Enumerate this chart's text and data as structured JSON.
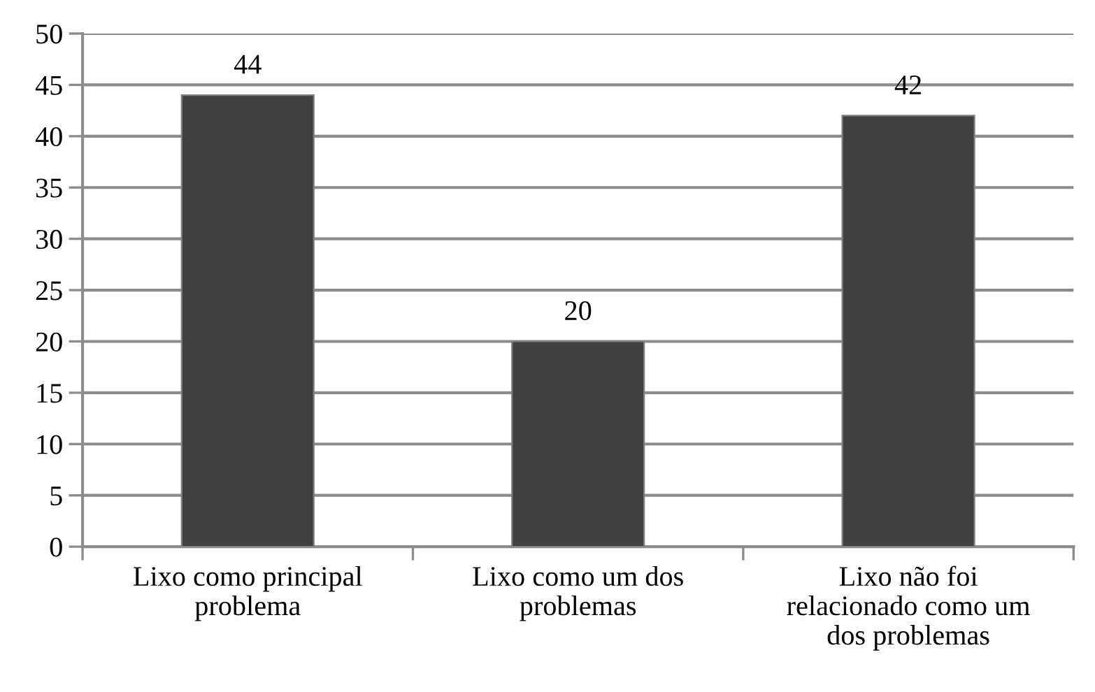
{
  "chart_data": {
    "type": "bar",
    "categories": [
      "Lixo como principal\nproblema",
      "Lixo como um dos\nproblemas",
      "Lixo não foi\nrelacionado como um\ndos problemas"
    ],
    "values": [
      44,
      20,
      42
    ],
    "color": "#404040",
    "ylim": [
      0,
      50
    ],
    "yticks": [
      0,
      5,
      10,
      15,
      20,
      25,
      30,
      35,
      40,
      45,
      50
    ],
    "grid": "y",
    "data_labels": true
  }
}
